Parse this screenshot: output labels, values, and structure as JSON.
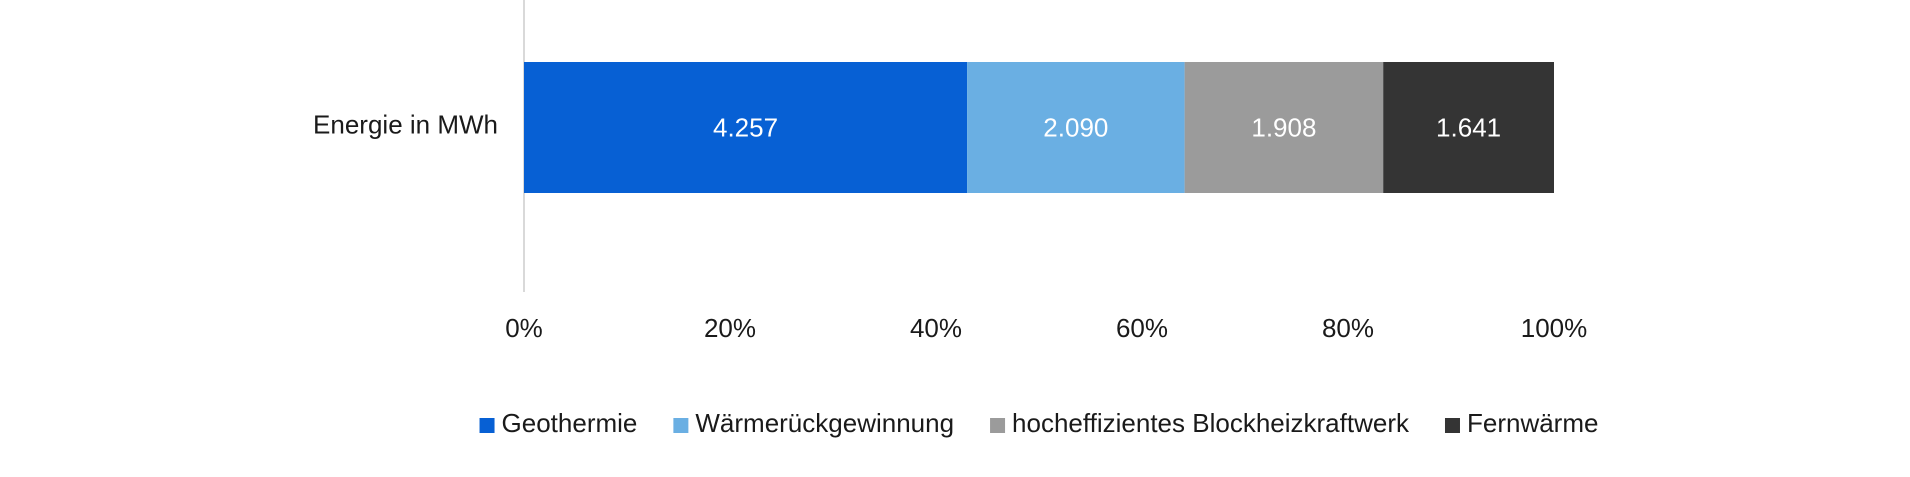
{
  "chart_data": {
    "type": "bar",
    "orientation": "horizontal",
    "stacking": "percent",
    "categories": [
      "Energie in MWh"
    ],
    "series": [
      {
        "name": "Geothermie",
        "values": [
          4257
        ],
        "labels": [
          "4.257"
        ],
        "color": "#0760d4"
      },
      {
        "name": "Wärmerückgewinnung",
        "values": [
          2090
        ],
        "labels": [
          "2.090"
        ],
        "color": "#6aafe3"
      },
      {
        "name": "hocheffizientes Blockheizkraftwerk",
        "values": [
          1908
        ],
        "labels": [
          "1.908"
        ],
        "color": "#9b9b9b"
      },
      {
        "name": "Fernwärme",
        "values": [
          1641
        ],
        "labels": [
          "1.641"
        ],
        "color": "#343434"
      }
    ],
    "xlim": [
      0,
      100
    ],
    "xticks": [
      0,
      20,
      40,
      60,
      80,
      100
    ],
    "xtick_labels": [
      "0%",
      "20%",
      "40%",
      "60%",
      "80%",
      "100%"
    ],
    "grid": false,
    "legend_position": "bottom",
    "title": "",
    "xlabel": "",
    "ylabel": ""
  },
  "colors": {
    "axis_line": "#d9d9d9",
    "text": "#1a1a1a",
    "data_label": "#ffffff"
  }
}
